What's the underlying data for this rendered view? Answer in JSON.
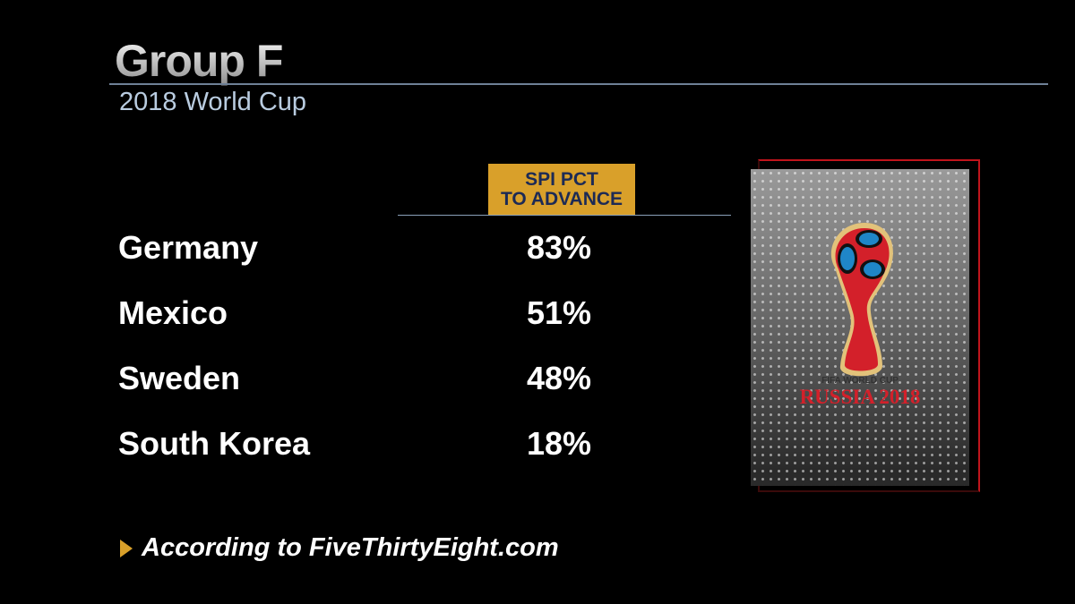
{
  "header": {
    "title": "Group F",
    "subtitle": "2018 World Cup"
  },
  "table": {
    "column_header_line1": "SPI PCT",
    "column_header_line2": "TO ADVANCE",
    "rows": [
      {
        "team": "Germany",
        "pct": "83%"
      },
      {
        "team": "Mexico",
        "pct": "51%"
      },
      {
        "team": "Sweden",
        "pct": "48%"
      },
      {
        "team": "South Korea",
        "pct": "18%"
      }
    ]
  },
  "footer": {
    "source": "According to FiveThirtyEight.com",
    "icon": "triangle-bullet-icon"
  },
  "logo": {
    "line1": "FIFA WORLD CUP",
    "line2": "RUSSIA 2018"
  },
  "colors": {
    "accent": "#d9a02a",
    "header_text": "#1c2a55",
    "subtitle": "#b9cce0",
    "logo_red": "#d3202a"
  }
}
